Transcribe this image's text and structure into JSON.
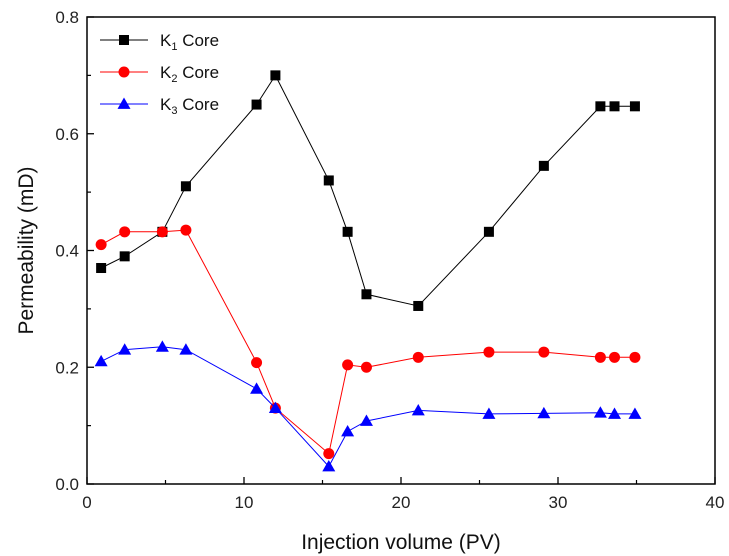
{
  "chart_data": {
    "type": "line",
    "title": "",
    "xlabel": "Injection volume (PV)",
    "ylabel": "Permeability (mD)",
    "xlim": [
      0,
      40
    ],
    "ylim": [
      0,
      0.8
    ],
    "x_ticks": [
      "0",
      "10",
      "20",
      "30",
      "40"
    ],
    "y_ticks": [
      "0.0",
      "0.2",
      "0.4",
      "0.6",
      "0.8"
    ],
    "grid": false,
    "legend_position": "top-left",
    "series": [
      {
        "name": "K1 Core",
        "legend_main": "K",
        "legend_sub": "1",
        "legend_suffix": " Core",
        "color": "#000000",
        "marker": "square",
        "points": [
          [
            0.9,
            0.37
          ],
          [
            2.4,
            0.39
          ],
          [
            4.8,
            0.432
          ],
          [
            6.3,
            0.51
          ],
          [
            10.8,
            0.65
          ],
          [
            12.0,
            0.7
          ],
          [
            15.4,
            0.52
          ],
          [
            16.6,
            0.432
          ],
          [
            17.8,
            0.325
          ],
          [
            21.1,
            0.305
          ],
          [
            25.6,
            0.432
          ],
          [
            29.1,
            0.545
          ],
          [
            32.7,
            0.647
          ],
          [
            33.6,
            0.647
          ],
          [
            34.9,
            0.647
          ]
        ]
      },
      {
        "name": "K2 Core",
        "legend_main": "K",
        "legend_sub": "2",
        "legend_suffix": " Core",
        "color": "#ff0000",
        "marker": "circle",
        "points": [
          [
            0.9,
            0.41
          ],
          [
            2.4,
            0.432
          ],
          [
            4.8,
            0.432
          ],
          [
            6.3,
            0.435
          ],
          [
            10.8,
            0.208
          ],
          [
            12.0,
            0.13
          ],
          [
            15.4,
            0.052
          ],
          [
            16.6,
            0.204
          ],
          [
            17.8,
            0.2
          ],
          [
            21.1,
            0.217
          ],
          [
            25.6,
            0.226
          ],
          [
            29.1,
            0.226
          ],
          [
            32.7,
            0.217
          ],
          [
            33.6,
            0.217
          ],
          [
            34.9,
            0.217
          ]
        ]
      },
      {
        "name": "K3 Core",
        "legend_main": "K",
        "legend_sub": "3",
        "legend_suffix": " Core",
        "color": "#0000ff",
        "marker": "triangle",
        "points": [
          [
            0.9,
            0.21
          ],
          [
            2.4,
            0.23
          ],
          [
            4.8,
            0.235
          ],
          [
            6.3,
            0.23
          ],
          [
            10.8,
            0.163
          ],
          [
            12.0,
            0.13
          ],
          [
            15.4,
            0.03
          ],
          [
            16.6,
            0.09
          ],
          [
            17.8,
            0.108
          ],
          [
            21.1,
            0.126
          ],
          [
            25.6,
            0.12
          ],
          [
            29.1,
            0.121
          ],
          [
            32.7,
            0.122
          ],
          [
            33.6,
            0.12
          ],
          [
            34.9,
            0.12
          ]
        ]
      }
    ]
  }
}
